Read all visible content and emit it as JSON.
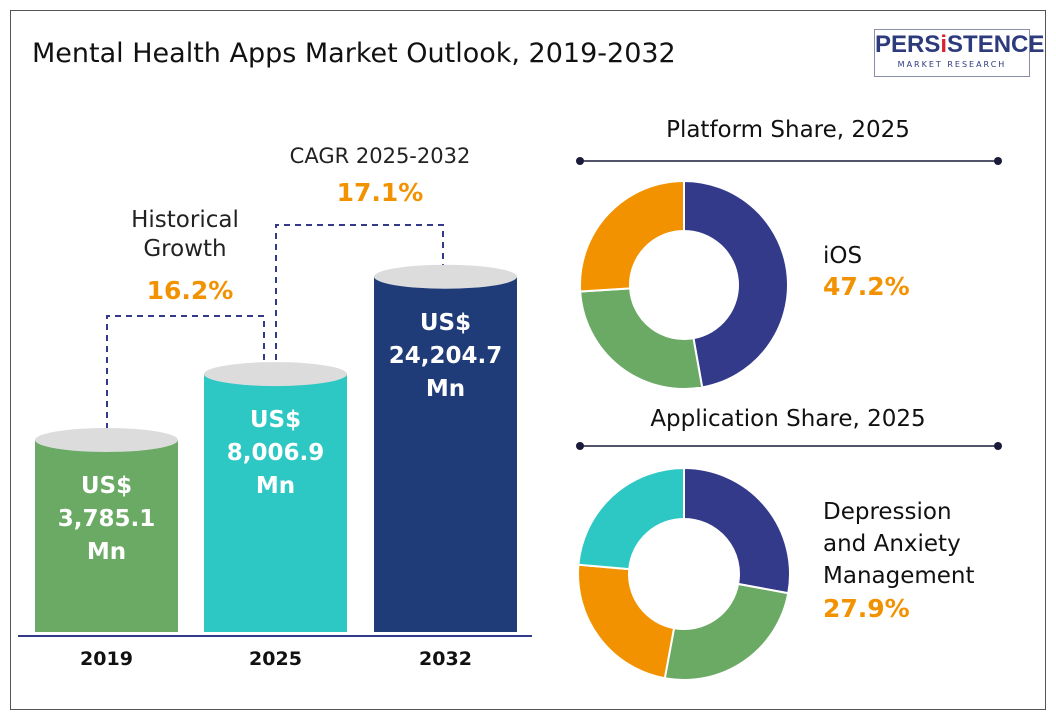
{
  "title": "Mental Health Apps Market Outlook, 2019-2032",
  "logo": {
    "brand": "PERSISTENCE",
    "sub": "MARKET RESEARCH"
  },
  "colors": {
    "bar_2019": "#6aaa64",
    "bar_2025": "#2ec8c4",
    "bar_2032": "#1f3b78",
    "navy": "#333a8a",
    "green": "#6aaa64",
    "orange": "#f39200",
    "teal": "#2ec8c4",
    "accent": "#f39200"
  },
  "chart_data": [
    {
      "type": "bar",
      "categories": [
        "2019",
        "2025",
        "2032"
      ],
      "values": [
        3785.1,
        8006.9,
        24204.7
      ],
      "unit": "US$ Mn",
      "data_labels": [
        [
          "US$",
          "3,785.1",
          "Mn"
        ],
        [
          "US$",
          "8,006.9",
          "Mn"
        ],
        [
          "US$",
          "24,204.7",
          "Mn"
        ]
      ],
      "annotations": [
        {
          "label_lines": [
            "Historical",
            "Growth"
          ],
          "value": "16.2%"
        },
        {
          "label_lines": [
            "CAGR 2025-2032"
          ],
          "value": "17.1%"
        }
      ]
    },
    {
      "type": "pie",
      "title": "Platform Share, 2025",
      "values": [
        47.2,
        26.8,
        26.0
      ],
      "colors": [
        "#333a8a",
        "#6aaa64",
        "#f39200"
      ],
      "highlight": {
        "label": "iOS",
        "value": "47.2%"
      }
    },
    {
      "type": "pie",
      "title": "Application Share, 2025",
      "values": [
        27.9,
        25.0,
        23.5,
        23.6
      ],
      "colors": [
        "#333a8a",
        "#6aaa64",
        "#f39200",
        "#2ec8c4"
      ],
      "highlight": {
        "label_lines": [
          "Depression",
          "and Anxiety",
          "Management"
        ],
        "value": "27.9%"
      }
    }
  ]
}
